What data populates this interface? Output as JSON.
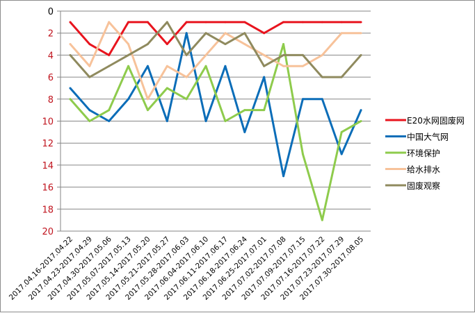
{
  "chart_data": {
    "type": "line",
    "title": "",
    "xlabel": "",
    "ylabel": "",
    "ylim": [
      0,
      20
    ],
    "y_reversed": true,
    "y_ticks": [
      0,
      2,
      4,
      6,
      8,
      10,
      12,
      14,
      16,
      18,
      20
    ],
    "grid": "horizontal",
    "legend_position": "right",
    "categories": [
      "2017.04.16-2017.04.22",
      "2017.04.23-2017.04.29",
      "2017.04.30-2017.05.06",
      "2017.05.07-2017.05.13",
      "2017.05.14-2017.05.20",
      "2017.05.21-2017.05.27",
      "2017.05.28-2017.06.03",
      "2017.06.04-2017.06.10",
      "2017.06.11-2017.06.17",
      "2017.06.18-2017.06.24",
      "2017.06.25-2017.07.01",
      "2017.07.02-2017.07.08",
      "2017.07.09-2017.07.15",
      "2017.07.16-2017.07.22",
      "2017.07.23-2017.07.29",
      "2017.07.30-2017.08.05"
    ],
    "series": [
      {
        "name": "E20水网固废网",
        "color": "#e8141e",
        "values": [
          1,
          3,
          4,
          1,
          1,
          3,
          1,
          1,
          1,
          1,
          2,
          1,
          1,
          1,
          1,
          1
        ]
      },
      {
        "name": "中国大气网",
        "color": "#0b6db8",
        "values": [
          7,
          9,
          10,
          8,
          5,
          10,
          2,
          10,
          5,
          11,
          6,
          15,
          8,
          8,
          13,
          9
        ]
      },
      {
        "name": "环境保护",
        "color": "#8ecb4c",
        "values": [
          8,
          10,
          9,
          5,
          9,
          7,
          8,
          5,
          10,
          9,
          9,
          3,
          13,
          19,
          11,
          10
        ]
      },
      {
        "name": "给水排水",
        "color": "#f7c29a",
        "values": [
          3,
          5,
          1,
          3,
          8,
          5,
          6,
          4,
          2,
          3,
          4,
          5,
          5,
          4,
          2,
          2
        ]
      },
      {
        "name": "固废观察",
        "color": "#8f8a5e",
        "values": [
          4,
          6,
          5,
          4,
          3,
          1,
          4,
          2,
          3,
          2,
          5,
          4,
          4,
          6,
          6,
          4
        ]
      }
    ]
  }
}
